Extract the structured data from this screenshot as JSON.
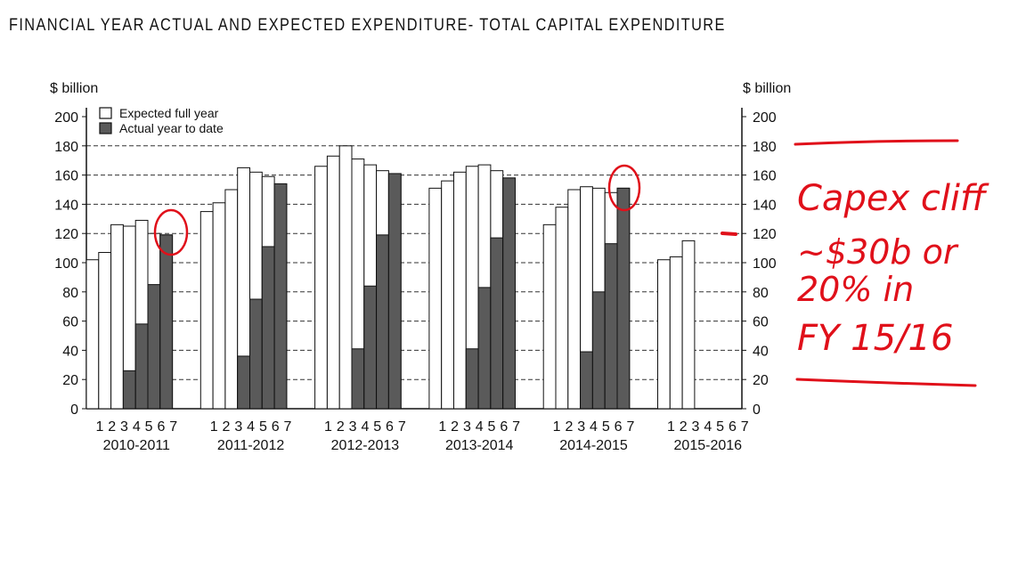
{
  "page_title": "FINANCIAL YEAR ACTUAL AND EXPECTED EXPENDITURE- TOTAL CAPITAL EXPENDITURE",
  "colors": {
    "expected_fill": "#ffffff",
    "actual_fill": "#5a5a5a",
    "annotation": "#e0101a",
    "grid": "#333333"
  },
  "chart_data": {
    "type": "bar",
    "ylabel_left": "$ billion",
    "ylabel_right": "$ billion",
    "ylim": [
      0,
      200
    ],
    "yticks": [
      0,
      20,
      40,
      60,
      80,
      100,
      120,
      140,
      160,
      180,
      200
    ],
    "grid": "dashed horizontal",
    "legend_position": "top-left",
    "estimate_numbers": [
      "1",
      "2",
      "3",
      "4",
      "5",
      "6",
      "7"
    ],
    "series": [
      {
        "name": "Expected full year",
        "color": "#ffffff"
      },
      {
        "name": "Actual year to date",
        "color": "#5a5a5a"
      }
    ],
    "groups": [
      {
        "label": "2010-2011",
        "expected": [
          102,
          107,
          126,
          125,
          129,
          120,
          119
        ],
        "actual": [
          null,
          null,
          null,
          26,
          58,
          85,
          119
        ]
      },
      {
        "label": "2011-2012",
        "expected": [
          135,
          141,
          150,
          165,
          162,
          159,
          154
        ],
        "actual": [
          null,
          null,
          null,
          36,
          75,
          111,
          154
        ]
      },
      {
        "label": "2012-2013",
        "expected": [
          166,
          173,
          180,
          171,
          167,
          163,
          161
        ],
        "actual": [
          null,
          null,
          null,
          41,
          84,
          119,
          161
        ]
      },
      {
        "label": "2013-2014",
        "expected": [
          151,
          156,
          162,
          166,
          167,
          163,
          158
        ],
        "actual": [
          null,
          null,
          null,
          41,
          83,
          117,
          158
        ]
      },
      {
        "label": "2014-2015",
        "expected": [
          126,
          138,
          150,
          152,
          151,
          148,
          151
        ],
        "actual": [
          null,
          null,
          null,
          39,
          80,
          113,
          151
        ]
      },
      {
        "label": "2015-2016",
        "expected": [
          102,
          104,
          115,
          null,
          null,
          null,
          null
        ],
        "actual": [
          null,
          null,
          null,
          null,
          null,
          null,
          null
        ]
      }
    ]
  },
  "annotation": {
    "lines": [
      "Capex cliff",
      "~$30b or",
      "20% in",
      "FY 15/16"
    ]
  }
}
